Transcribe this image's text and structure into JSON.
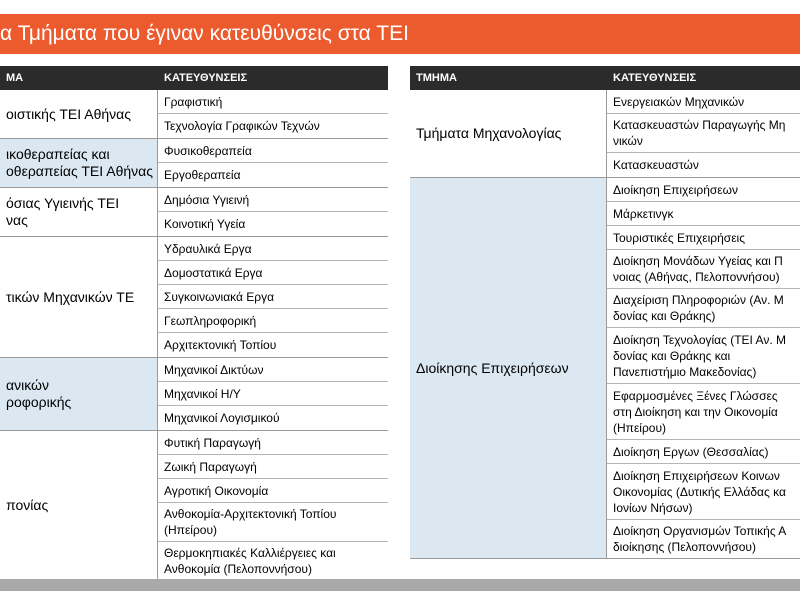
{
  "header": {
    "title": "α Τμήματα που έγιναν κατευθύνσεις στα ΤΕΙ"
  },
  "table": {
    "left": {
      "columns": [
        "ΜΑ",
        "ΚΑΤΕΥΘΥΝΣΕΙΣ"
      ],
      "rows": [
        {
          "department": "οιστικής ΤΕΙ Αθήνας",
          "shade": "#ffffff",
          "directions": [
            "Γραφιστική",
            "Τεχνολογία Γραφικών Τεχνών"
          ]
        },
        {
          "department": "ικοθεραπείας και\nοθεραπείας ΤΕΙ Αθήνας",
          "shade": "#dbe8f2",
          "directions": [
            "Φυσικοθεραπεία",
            "Εργοθεραπεία"
          ]
        },
        {
          "department": "όσιας Υγιεινής ΤΕΙ\nνας",
          "shade": "#ffffff",
          "directions": [
            "Δημόσια Υγιεινή",
            "Κοινοτική Υγεία"
          ]
        },
        {
          "department": "τικών Μηχανικών ΤΕ",
          "shade": "#ffffff",
          "directions": [
            "Υδραυλικά Εργα",
            "Δομοστατικά Εργα",
            "Συγκοινωνιακά Εργα",
            "Γεωπληροφορική",
            "Αρχιτεκτονική Τοπίου"
          ]
        },
        {
          "department": "ανικών\nροφορικής",
          "shade": "#dbe8f2",
          "directions": [
            "Μηχανικοί Δικτύων",
            "Μηχανικοί Η/Υ",
            "Μηχανικοί Λογισμικού"
          ]
        },
        {
          "department": "πονίας",
          "shade": "#ffffff",
          "directions": [
            "Φυτική Παραγωγή",
            "Ζωική Παραγωγή",
            "Αγροτική Οικονομία",
            "Ανθοκομία-Αρχιτεκτονική Τοπίου\n(Ηπείρου)",
            "Θερμοκηπιακές Καλλιέργειες και\nΑνθοκομία (Πελοποννήσου)"
          ]
        }
      ]
    },
    "right": {
      "columns": [
        "ΤΜΗΜΑ",
        "ΚΑΤΕΥΘΥΝΣΕΙΣ"
      ],
      "rows": [
        {
          "department": "Τμήματα Μηχανολογίας",
          "shade": "#ffffff",
          "directions": [
            "Ενεργειακών Μηχανικών",
            "Κατασκευαστών Παραγωγής Μη\nνικών",
            "Κατασκευαστών"
          ]
        },
        {
          "department": "Διοίκησης Επιχειρήσεων",
          "shade": "#dbe8f2",
          "directions": [
            "Διοίκηση Επιχειρήσεων",
            "Μάρκετινγκ",
            "Τουριστικές Επιχειρήσεις",
            "Διοίκηση Μονάδων Υγείας και Π\nνοιας (Αθήνας, Πελοποννήσου)",
            "Διαχείριση Πληροφοριών (Αν. Μ\nδονίας και Θράκης)",
            "Διοίκηση Τεχνολογίας (ΤΕΙ Αν. Μ\nδονίας και Θράκης και\nΠανεπιστήμιο Μακεδονίας)",
            "Εφαρμοσμένες Ξένες Γλώσσες\nστη Διοίκηση και την Οικονομία\n(Ηπείρου)",
            "Διοίκηση Εργων (Θεσσαλίας)",
            "Διοίκηση Επιχειρήσεων Κοινων\nΟικονομίας (Δυτικής Ελλάδας κα\nΙονίων Νήσων)",
            "Διοίκηση Οργανισμών Τοπικής Α\nδιοίκησης (Πελοποννήσου)"
          ]
        }
      ]
    }
  }
}
